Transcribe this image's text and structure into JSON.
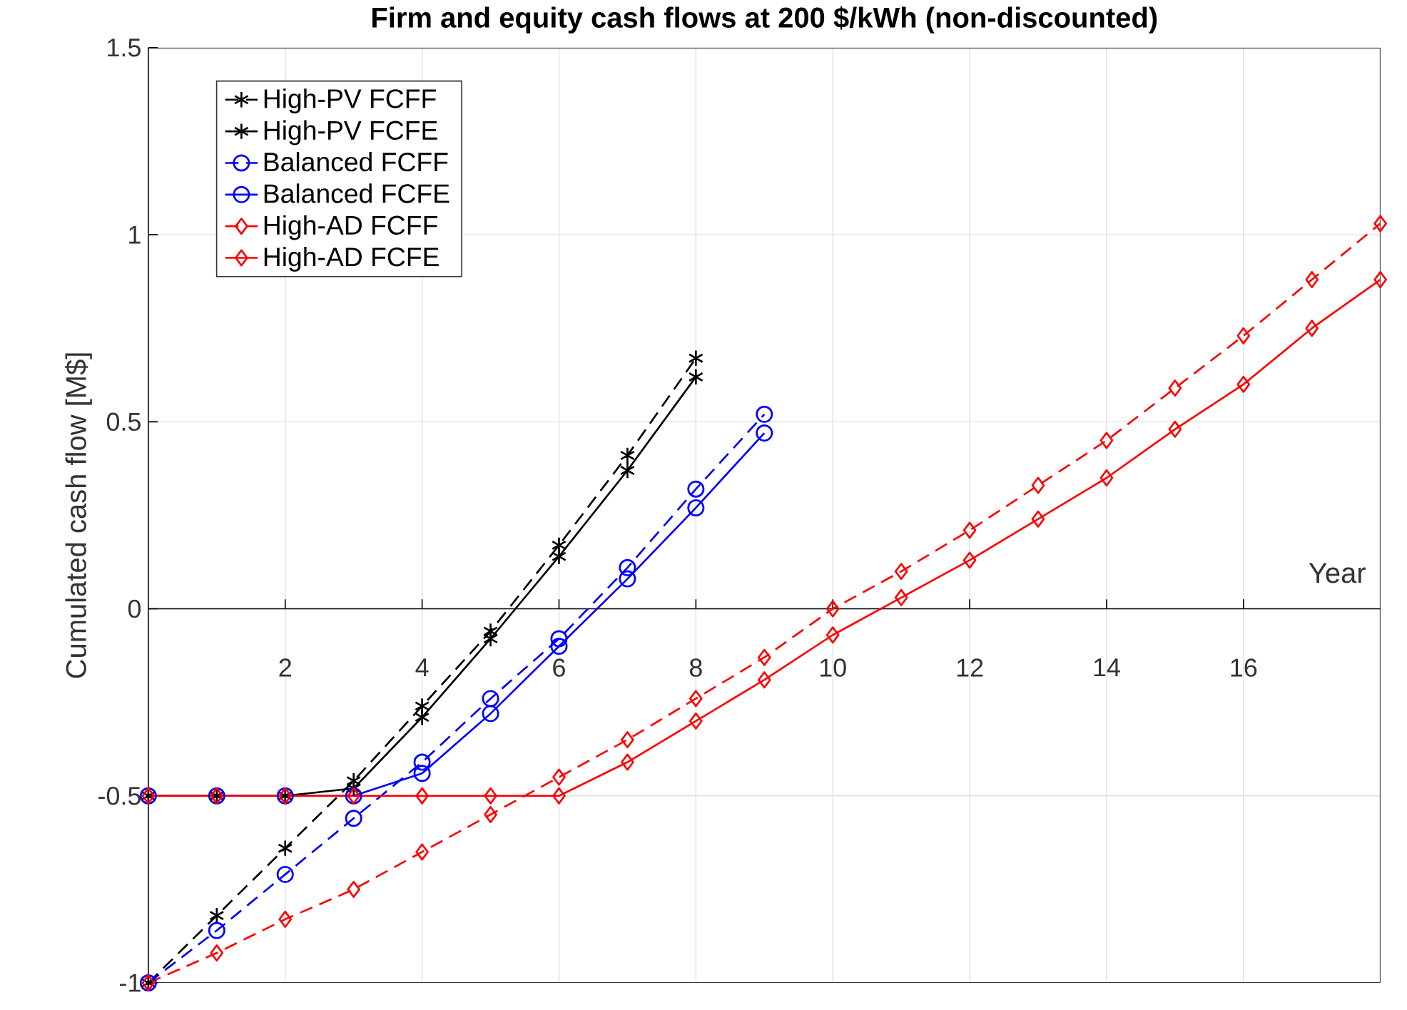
{
  "chart_data": {
    "type": "line",
    "title": "Firm and equity cash flows at 200 $/kWh (non-discounted)",
    "xlabel": "Year",
    "ylabel": "Cumulated cash flow [M$]",
    "xlim": [
      0,
      18
    ],
    "ylim": [
      -1,
      1.5
    ],
    "xticks": [
      2,
      4,
      6,
      8,
      10,
      12,
      14,
      16
    ],
    "yticks": [
      -1,
      -0.5,
      0,
      0.5,
      1,
      1.5
    ],
    "grid": true,
    "legend": "top left",
    "series": [
      {
        "name": "High-PV FCFF",
        "color": "#000000",
        "marker": "cross",
        "line_style": "dashed",
        "x": [
          0,
          1,
          2,
          3,
          4,
          5,
          6,
          7,
          8
        ],
        "values": [
          -1,
          -0.82,
          -0.64,
          -0.46,
          -0.26,
          -0.06,
          0.17,
          0.41,
          0.67
        ]
      },
      {
        "name": "High-PV FCFE",
        "color": "#000000",
        "marker": "cross",
        "line_style": "solid",
        "x": [
          0,
          1,
          2,
          3,
          4,
          5,
          6,
          7,
          8
        ],
        "values": [
          -0.5,
          -0.5,
          -0.5,
          -0.48,
          -0.29,
          -0.08,
          0.14,
          0.37,
          0.62
        ]
      },
      {
        "name": "Balanced FCFF",
        "color": "#0000ff",
        "marker": "circle",
        "line_style": "dashed",
        "x": [
          0,
          1,
          2,
          3,
          4,
          5,
          6,
          7,
          8,
          9
        ],
        "values": [
          -1,
          -0.86,
          -0.71,
          -0.56,
          -0.41,
          -0.24,
          -0.08,
          0.11,
          0.32,
          0.52
        ]
      },
      {
        "name": "Balanced FCFE",
        "color": "#0000ff",
        "marker": "circle",
        "line_style": "solid",
        "x": [
          0,
          1,
          2,
          3,
          4,
          5,
          6,
          7,
          8,
          9
        ],
        "values": [
          -0.5,
          -0.5,
          -0.5,
          -0.5,
          -0.44,
          -0.28,
          -0.1,
          0.08,
          0.27,
          0.47
        ]
      },
      {
        "name": "High-AD FCFF",
        "color": "#ff0000",
        "marker": "diamond",
        "line_style": "dashed",
        "x": [
          0,
          1,
          2,
          3,
          4,
          5,
          6,
          7,
          8,
          9,
          10,
          11,
          12,
          13,
          14,
          15,
          16,
          17,
          18
        ],
        "values": [
          -1,
          -0.92,
          -0.83,
          -0.75,
          -0.65,
          -0.55,
          -0.45,
          -0.35,
          -0.24,
          -0.13,
          0.0,
          0.1,
          0.21,
          0.33,
          0.45,
          0.59,
          0.73,
          0.88,
          1.03
        ]
      },
      {
        "name": "High-AD FCFE",
        "color": "#ff0000",
        "marker": "diamond",
        "line_style": "solid",
        "x": [
          0,
          1,
          2,
          3,
          4,
          5,
          6,
          7,
          8,
          9,
          10,
          11,
          12,
          13,
          14,
          15,
          16,
          17,
          18
        ],
        "values": [
          -0.5,
          -0.5,
          -0.5,
          -0.5,
          -0.5,
          -0.5,
          -0.5,
          -0.41,
          -0.3,
          -0.19,
          -0.07,
          0.03,
          0.13,
          0.24,
          0.35,
          0.48,
          0.6,
          0.75,
          0.88
        ]
      }
    ]
  }
}
